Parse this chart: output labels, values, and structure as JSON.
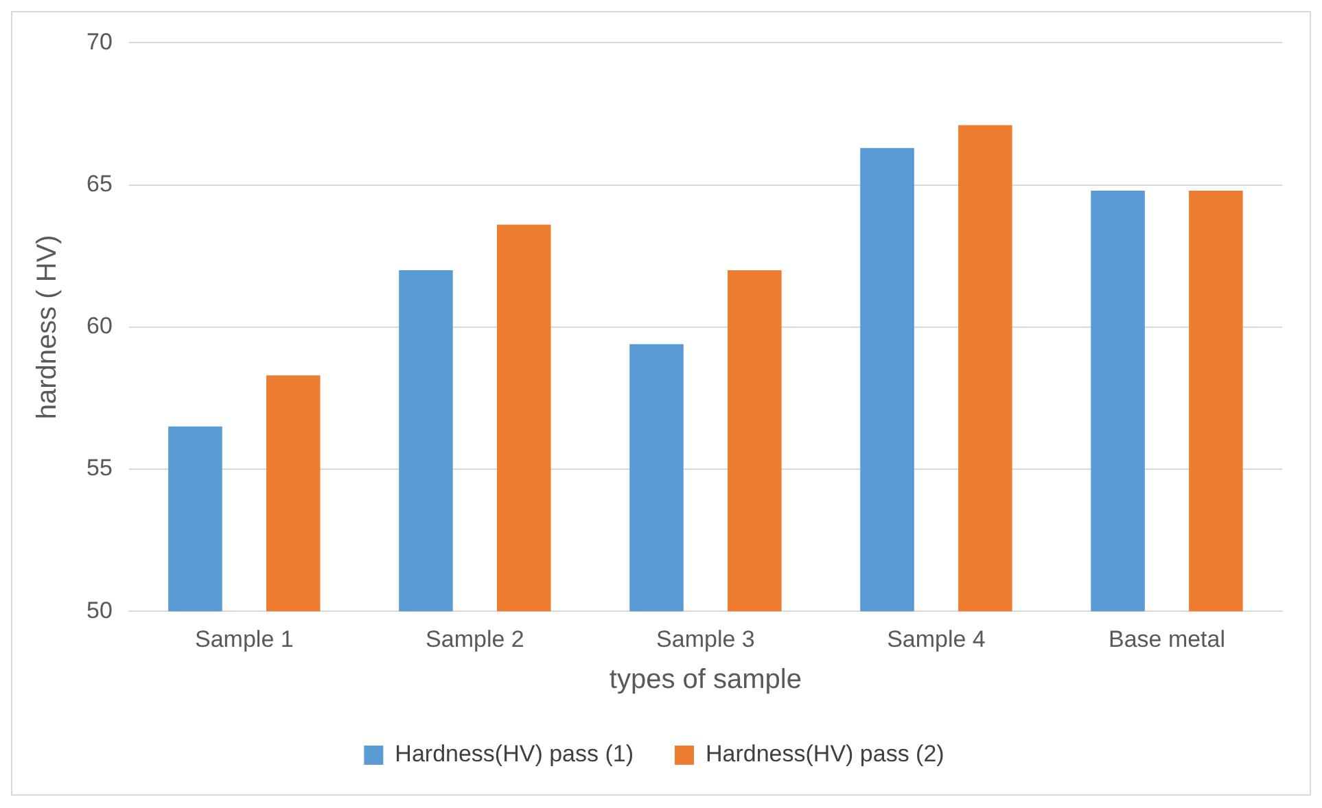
{
  "chart_data": {
    "type": "bar",
    "xlabel": "types of sample",
    "ylabel": "hardness ( HV)",
    "categories": [
      "Sample 1",
      "Sample 2",
      "Sample 3",
      "Sample 4",
      "Base metal"
    ],
    "series": [
      {
        "name": "Hardness(HV) pass (1)",
        "color": "#5b9bd5",
        "values": [
          56.5,
          62.0,
          59.4,
          66.3,
          64.8
        ]
      },
      {
        "name": "Hardness(HV) pass (2)",
        "color": "#ed7d31",
        "values": [
          58.3,
          63.6,
          62.0,
          67.1,
          64.8
        ]
      }
    ],
    "ylim": [
      50,
      70
    ],
    "yticks": [
      50,
      55,
      60,
      65,
      70
    ],
    "grid": "y",
    "legend": "bottom"
  }
}
